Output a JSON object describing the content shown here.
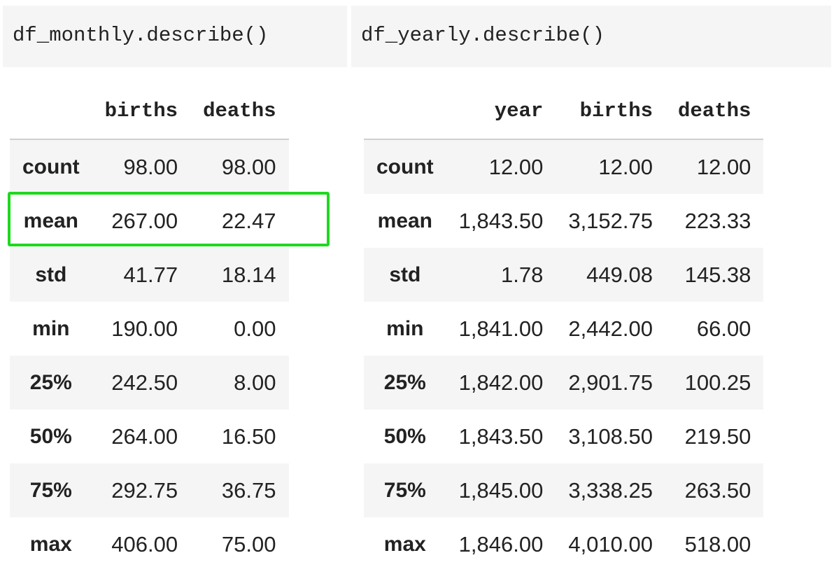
{
  "left": {
    "code": "df_monthly.describe()",
    "columns": [
      "births",
      "deaths"
    ],
    "rows": [
      {
        "label": "count",
        "values": [
          "98.00",
          "98.00"
        ]
      },
      {
        "label": "mean",
        "values": [
          "267.00",
          "22.47"
        ]
      },
      {
        "label": "std",
        "values": [
          "41.77",
          "18.14"
        ]
      },
      {
        "label": "min",
        "values": [
          "190.00",
          "0.00"
        ]
      },
      {
        "label": "25%",
        "values": [
          "242.50",
          "8.00"
        ]
      },
      {
        "label": "50%",
        "values": [
          "264.00",
          "16.50"
        ]
      },
      {
        "label": "75%",
        "values": [
          "292.75",
          "36.75"
        ]
      },
      {
        "label": "max",
        "values": [
          "406.00",
          "75.00"
        ]
      }
    ]
  },
  "right": {
    "code": "df_yearly.describe()",
    "columns": [
      "year",
      "births",
      "deaths"
    ],
    "rows": [
      {
        "label": "count",
        "values": [
          "12.00",
          "12.00",
          "12.00"
        ]
      },
      {
        "label": "mean",
        "values": [
          "1,843.50",
          "3,152.75",
          "223.33"
        ]
      },
      {
        "label": "std",
        "values": [
          "1.78",
          "449.08",
          "145.38"
        ]
      },
      {
        "label": "min",
        "values": [
          "1,841.00",
          "2,442.00",
          "66.00"
        ]
      },
      {
        "label": "25%",
        "values": [
          "1,842.00",
          "2,901.75",
          "100.25"
        ]
      },
      {
        "label": "50%",
        "values": [
          "1,843.50",
          "3,108.50",
          "219.50"
        ]
      },
      {
        "label": "75%",
        "values": [
          "1,845.00",
          "3,338.25",
          "263.50"
        ]
      },
      {
        "label": "max",
        "values": [
          "1,846.00",
          "4,010.00",
          "518.00"
        ]
      }
    ]
  },
  "highlight": {
    "table": "left",
    "row": "mean",
    "color": "#1fd81f"
  }
}
